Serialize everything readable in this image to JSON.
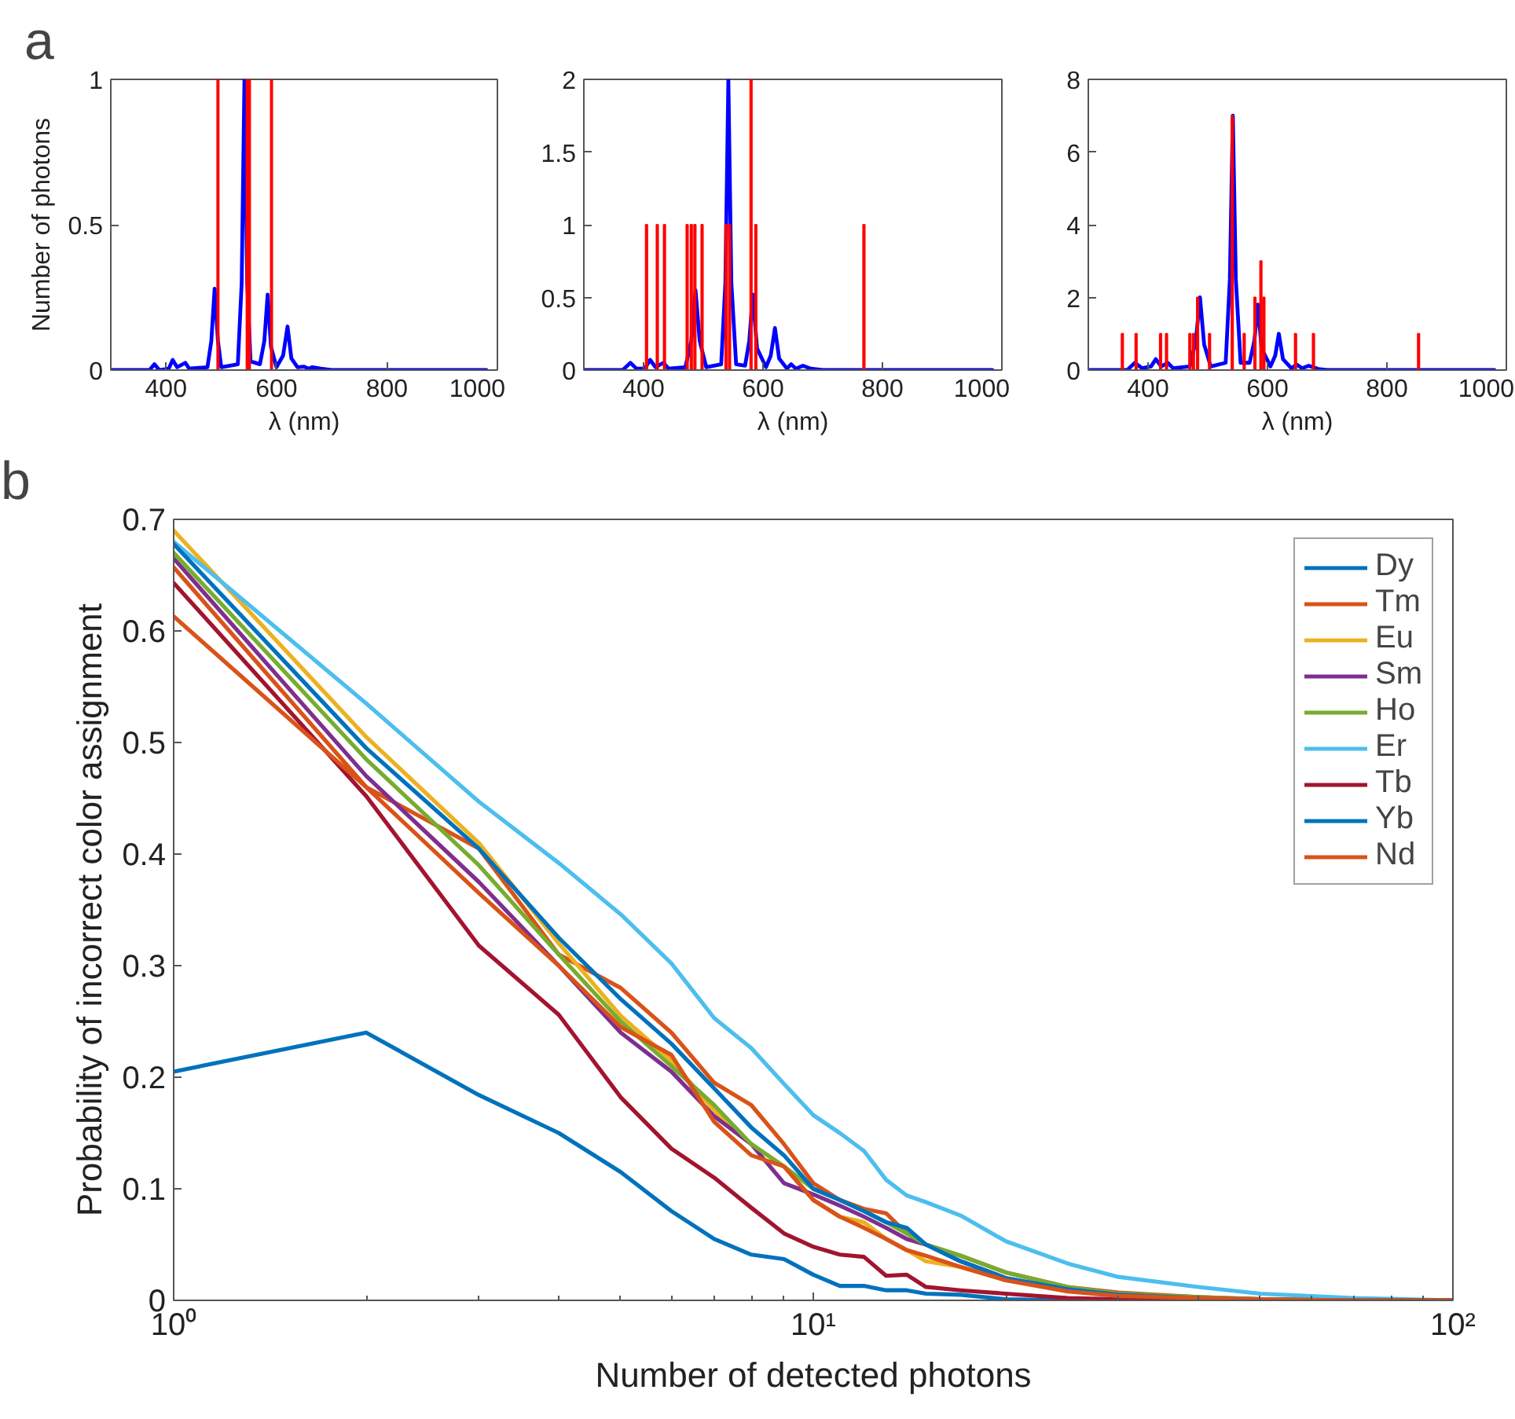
{
  "chart_data": [
    {
      "type": "line",
      "annotations": [
        "a"
      ],
      "xlabel": "λ (nm)",
      "ylabel": "Number of photons",
      "xlim": [
        300,
        1000
      ],
      "ylim": [
        0,
        1
      ],
      "xticks": [
        400,
        600,
        800,
        1000
      ],
      "yticks": [
        0,
        0.5,
        1
      ],
      "series": [
        {
          "type": "bar",
          "color": "#ff0000",
          "x": [
            494,
            547,
            551,
            591
          ],
          "values": [
            1,
            1,
            1,
            1
          ]
        },
        {
          "type": "line",
          "color": "#0000ff",
          "x": [
            300,
            370,
            379,
            388,
            405,
            412,
            420,
            435,
            442,
            475,
            482,
            488,
            494,
            500,
            530,
            537,
            542,
            547,
            553,
            570,
            578,
            584,
            590,
            600,
            612,
            620,
            627,
            638,
            650,
            658,
            665,
            680,
            700,
            980
          ],
          "values": [
            0,
            0,
            0.02,
            0,
            0.005,
            0.035,
            0.01,
            0.025,
            0.005,
            0.01,
            0.1,
            0.28,
            0.1,
            0.01,
            0.02,
            0.3,
            1.0,
            0.3,
            0.03,
            0.02,
            0.1,
            0.26,
            0.08,
            0.01,
            0.05,
            0.15,
            0.04,
            0.01,
            0.012,
            0.005,
            0.01,
            0.005,
            0,
            0
          ]
        }
      ]
    },
    {
      "type": "line",
      "xlabel": "λ (nm)",
      "xlim": [
        300,
        1000
      ],
      "ylim": [
        0,
        2
      ],
      "xticks": [
        400,
        600,
        800,
        1000
      ],
      "yticks": [
        0,
        0.5,
        1,
        1.5,
        2
      ],
      "series": [
        {
          "type": "bar",
          "color": "#ff0000",
          "x": [
            405,
            423,
            435,
            473,
            480,
            486,
            498,
            538,
            544,
            580,
            588,
            769
          ],
          "values": [
            1,
            1,
            1,
            1,
            1,
            1,
            1,
            1,
            1,
            2,
            1,
            1
          ]
        },
        {
          "type": "line",
          "color": "#0000ff",
          "x": [
            300,
            365,
            378,
            388,
            402,
            411,
            420,
            433,
            442,
            470,
            480,
            487,
            494,
            505,
            530,
            537,
            542,
            547,
            555,
            570,
            577,
            583,
            590,
            605,
            613,
            620,
            627,
            640,
            647,
            655,
            667,
            680,
            700,
            984
          ],
          "values": [
            0,
            0,
            0.05,
            0.01,
            0.01,
            0.07,
            0.02,
            0.05,
            0.01,
            0.02,
            0.2,
            0.55,
            0.2,
            0.02,
            0.04,
            0.6,
            2.0,
            0.6,
            0.04,
            0.03,
            0.2,
            0.52,
            0.15,
            0.02,
            0.1,
            0.29,
            0.08,
            0.01,
            0.04,
            0.01,
            0.03,
            0.01,
            0,
            0
          ]
        }
      ]
    },
    {
      "type": "line",
      "xlabel": "λ (nm)",
      "xlim": [
        300,
        1000
      ],
      "ylim": [
        0,
        8
      ],
      "xticks": [
        400,
        600,
        800,
        1000
      ],
      "yticks": [
        0,
        2,
        4,
        6,
        8
      ],
      "series": [
        {
          "type": "bar",
          "color": "#ff0000",
          "x": [
            357,
            380,
            421,
            431,
            470,
            476,
            483,
            503,
            541,
            561,
            579,
            589,
            594,
            647,
            677,
            853
          ],
          "values": [
            1,
            1,
            1,
            1,
            1,
            1,
            2,
            1,
            7,
            1,
            2,
            3,
            2,
            1,
            1,
            1
          ]
        },
        {
          "type": "line",
          "color": "#0000ff",
          "x": [
            300,
            365,
            378,
            390,
            405,
            413,
            422,
            433,
            442,
            470,
            480,
            487,
            494,
            505,
            530,
            537,
            542,
            547,
            555,
            570,
            578,
            584,
            590,
            605,
            613,
            619,
            626,
            640,
            649,
            658,
            669,
            685,
            700,
            980
          ],
          "values": [
            0,
            0,
            0.2,
            0.05,
            0.1,
            0.3,
            0.1,
            0.2,
            0.05,
            0.1,
            0.8,
            2.0,
            0.7,
            0.1,
            0.2,
            2.5,
            7.0,
            2.5,
            0.2,
            0.2,
            0.8,
            1.8,
            0.6,
            0.1,
            0.4,
            1.0,
            0.3,
            0.05,
            0.15,
            0.05,
            0.12,
            0.03,
            0,
            0
          ]
        }
      ]
    },
    {
      "type": "line",
      "annotations": [
        "b"
      ],
      "xlabel": "Number of detected photons",
      "ylabel": "Probability of incorrect color assignment",
      "log": "x",
      "legend": "top right",
      "xlim": [
        1,
        100
      ],
      "ylim": [
        0,
        0.7
      ],
      "xticks": [
        {
          "value": 1,
          "label": "10⁰"
        },
        {
          "value": 10,
          "label": "10¹"
        },
        {
          "value": 100,
          "label": "10²"
        }
      ],
      "yticks": [
        0,
        0.1,
        0.2,
        0.3,
        0.4,
        0.5,
        0.6,
        0.7
      ],
      "x": [
        1,
        2,
        3,
        4,
        5,
        6,
        7,
        8,
        9,
        10,
        11,
        12,
        13,
        14,
        15,
        17,
        20,
        25,
        30,
        40,
        50,
        70,
        100
      ],
      "series": [
        {
          "name": "Dy",
          "color": "#0072bd",
          "values": [
            0.205,
            0.24,
            0.184,
            0.15,
            0.115,
            0.08,
            0.055,
            0.041,
            0.037,
            0.023,
            0.013,
            0.013,
            0.009,
            0.009,
            0.006,
            0.005,
            0.001,
            0,
            0,
            0,
            0,
            0,
            0
          ]
        },
        {
          "name": "Tm",
          "color": "#d95319",
          "values": [
            0.657,
            0.46,
            0.405,
            0.31,
            0.28,
            0.24,
            0.195,
            0.175,
            0.14,
            0.105,
            0.09,
            0.082,
            0.078,
            0.06,
            0.05,
            0.04,
            0.025,
            0.012,
            0.007,
            0.003,
            0.001,
            0,
            0
          ]
        },
        {
          "name": "Eu",
          "color": "#edb120",
          "values": [
            0.69,
            0.505,
            0.41,
            0.32,
            0.255,
            0.215,
            0.17,
            0.14,
            0.12,
            0.09,
            0.075,
            0.07,
            0.055,
            0.045,
            0.035,
            0.03,
            0.018,
            0.01,
            0.005,
            0.002,
            0.001,
            null,
            null
          ]
        },
        {
          "name": "Sm",
          "color": "#7e2f8e",
          "values": [
            0.665,
            0.47,
            0.375,
            0.3,
            0.24,
            0.205,
            0.165,
            0.14,
            0.105,
            0.095,
            0.085,
            0.075,
            0.065,
            0.055,
            0.05,
            0.035,
            0.02,
            null,
            null,
            null,
            null,
            null,
            null
          ]
        },
        {
          "name": "Ho",
          "color": "#77ac30",
          "values": [
            0.67,
            0.485,
            0.39,
            0.31,
            0.25,
            0.21,
            0.175,
            0.14,
            0.12,
            0.1,
            0.09,
            0.08,
            0.07,
            0.06,
            0.05,
            0.04,
            0.025,
            0.012,
            0.006,
            0.003,
            0.001,
            0,
            0
          ]
        },
        {
          "name": "Er",
          "color": "#4dbeee",
          "values": [
            0.68,
            0.535,
            0.447,
            0.392,
            0.346,
            0.302,
            0.253,
            0.226,
            0.194,
            0.166,
            0.15,
            0.134,
            0.108,
            0.094,
            0.088,
            0.076,
            0.053,
            0.033,
            0.021,
            0.012,
            0.006,
            0.002,
            0
          ]
        },
        {
          "name": "Tb",
          "color": "#a2142f",
          "values": [
            0.643,
            0.452,
            0.318,
            0.256,
            0.182,
            0.136,
            0.11,
            0.083,
            0.06,
            0.048,
            0.041,
            0.039,
            0.022,
            0.023,
            0.012,
            0.009,
            0.006,
            0.002,
            0.001,
            0,
            0,
            0,
            0
          ]
        },
        {
          "name": "Yb",
          "color": "#0072bd",
          "values": [
            0.678,
            0.495,
            0.405,
            0.325,
            0.27,
            0.23,
            0.19,
            0.155,
            0.13,
            0.1,
            0.09,
            0.08,
            0.07,
            0.065,
            0.05,
            0.035,
            0.02,
            0.01,
            0.005,
            0.002,
            0.001,
            0,
            0
          ]
        },
        {
          "name": "Nd",
          "color": "#d95319",
          "values": [
            0.613,
            0.46,
            0.365,
            0.3,
            0.245,
            0.22,
            0.16,
            0.13,
            0.12,
            0.09,
            0.075,
            0.065,
            0.055,
            0.045,
            0.04,
            0.03,
            0.018,
            0.008,
            0.004,
            0.002,
            0.001,
            0,
            0
          ]
        }
      ]
    }
  ]
}
